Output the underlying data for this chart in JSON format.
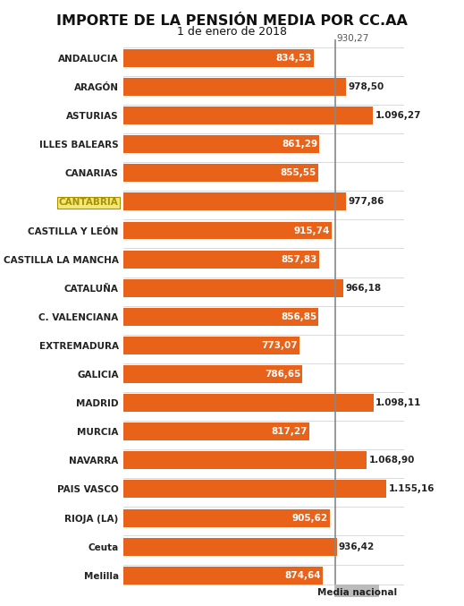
{
  "title": "IMPORTE DE LA PENSIÓN MEDIA POR CC.AA",
  "subtitle": "1 de enero de 2018",
  "media_nacional": 930.27,
  "categories": [
    "ANDALUCIA",
    "ARAGÓN",
    "ASTURIAS",
    "ILLES BALEARS",
    "CANARIAS",
    "CANTABRIA",
    "CASTILLA Y LEÓN",
    "CASTILLA LA MANCHA",
    "CATALUÑA",
    "C. VALENCIANA",
    "EXTREMADURA",
    "GALICIA",
    "MADRID",
    "MURCIA",
    "NAVARRA",
    "PAIS VASCO",
    "RIOJA (LA)",
    "Ceuta",
    "Melilla"
  ],
  "values": [
    834.53,
    978.5,
    1096.27,
    861.29,
    855.55,
    977.86,
    915.74,
    857.83,
    966.18,
    856.85,
    773.07,
    786.65,
    1098.11,
    817.27,
    1068.9,
    1155.16,
    905.62,
    936.42,
    874.64
  ],
  "value_labels": [
    "834,53",
    "978,50",
    "1.096,27",
    "861,29",
    "855,55",
    "977,86",
    "915,74",
    "857,83",
    "966,18",
    "856,85",
    "773,07",
    "786,65",
    "1.098,11",
    "817,27",
    "1.068,90",
    "1.155,16",
    "905,62",
    "936,42",
    "874,64"
  ],
  "bar_color": "#E8621A",
  "cantabria_label_color": "#a89000",
  "cantabria_label_bg": "#f0e87a",
  "cantabria_label_edge": "#a89000",
  "media_line_color": "#888888",
  "media_label_color": "#555555",
  "media_nacional_label": "930,27",
  "media_nacional_box_label": "Media nacional",
  "media_box_color": "#bbbbbb",
  "background_color": "#ffffff",
  "title_fontsize": 11.5,
  "subtitle_fontsize": 9,
  "cat_label_fontsize": 7.5,
  "bar_label_fontsize": 7.5,
  "xlim_max": 1230
}
